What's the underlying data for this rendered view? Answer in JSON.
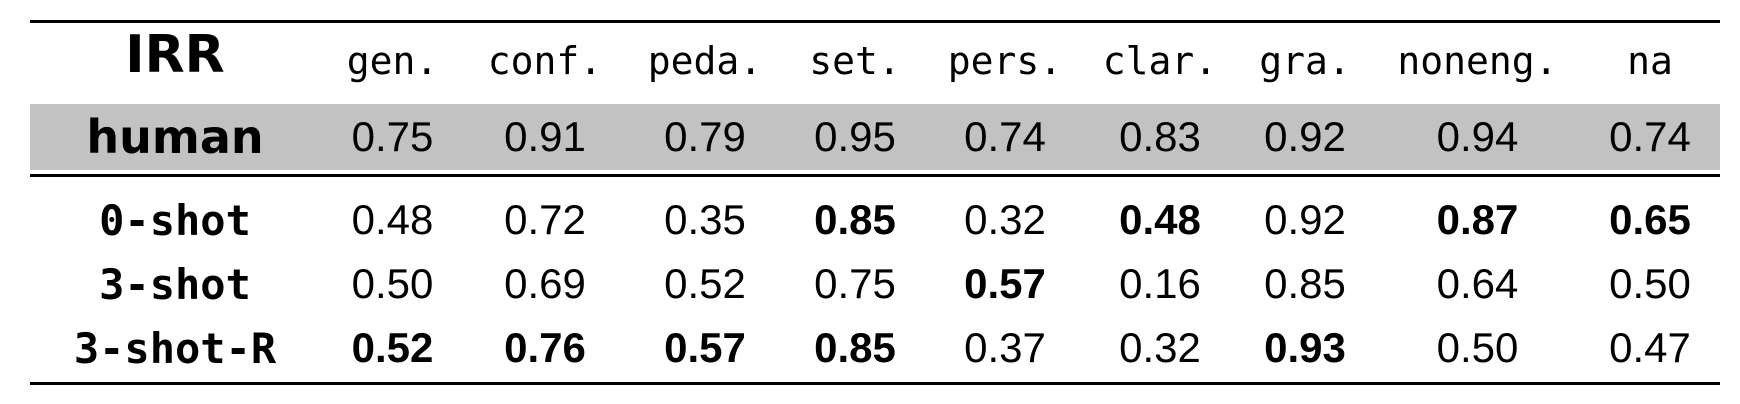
{
  "table": {
    "corner_label": "IRR",
    "columns": [
      "gen.",
      "conf.",
      "peda.",
      "set.",
      "pers.",
      "clar.",
      "gra.",
      "noneng.",
      "na"
    ],
    "human_row": {
      "label": "human",
      "values": [
        "0.75",
        "0.91",
        "0.79",
        "0.95",
        "0.74",
        "0.83",
        "0.92",
        "0.94",
        "0.74"
      ],
      "highlight_color": "#c2c2c2"
    },
    "rows": [
      {
        "label": "0-shot",
        "values": [
          "0.48",
          "0.72",
          "0.35",
          "0.85",
          "0.32",
          "0.48",
          "0.92",
          "0.87",
          "0.65"
        ],
        "bold": [
          false,
          false,
          false,
          true,
          false,
          true,
          false,
          true,
          true
        ]
      },
      {
        "label": "3-shot",
        "values": [
          "0.50",
          "0.69",
          "0.52",
          "0.75",
          "0.57",
          "0.16",
          "0.85",
          "0.64",
          "0.50"
        ],
        "bold": [
          false,
          false,
          false,
          false,
          true,
          false,
          false,
          false,
          false
        ]
      },
      {
        "label": "3-shot-R",
        "values": [
          "0.52",
          "0.76",
          "0.57",
          "0.85",
          "0.37",
          "0.32",
          "0.93",
          "0.50",
          "0.47"
        ],
        "bold": [
          true,
          true,
          true,
          true,
          false,
          false,
          true,
          false,
          false
        ]
      }
    ]
  }
}
